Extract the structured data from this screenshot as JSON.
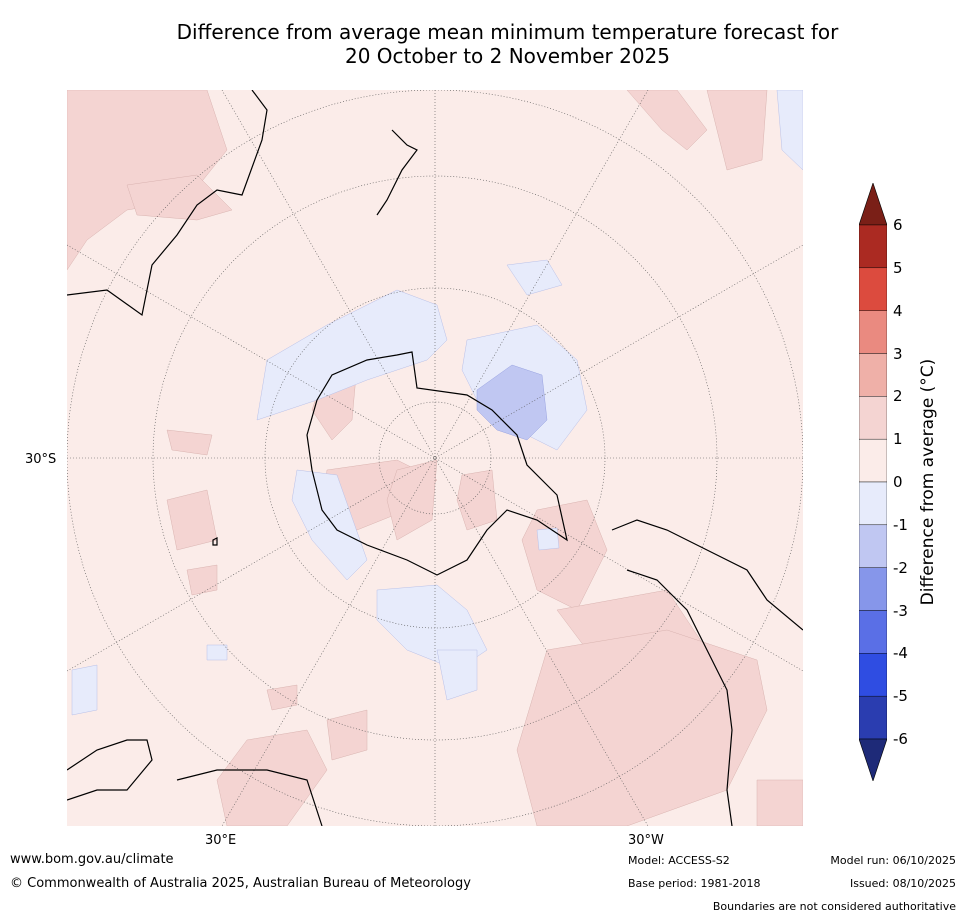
{
  "title_line1": "Difference from average mean minimum temperature forecast for",
  "title_line2": "20 October to 2 November 2025",
  "map": {
    "lat_label": "30°S",
    "lon_label_east": "30°E",
    "lon_label_west": "30°W",
    "colors": {
      "anomaly_0_1": "#fbece9",
      "anomaly_1_2": "#f4d4d2",
      "anomaly_m1_0": "#e7ebfb",
      "anomaly_m2_m1": "#c0c7f2",
      "coast": "#000000",
      "grid": "#555555"
    }
  },
  "colorbar": {
    "label": "Difference from average (°C)",
    "ticks": [
      "6",
      "5",
      "4",
      "3",
      "2",
      "1",
      "0",
      "-1",
      "-2",
      "-3",
      "-4",
      "-5",
      "-6"
    ],
    "colors": [
      "#7a1f17",
      "#ab2a22",
      "#dc4b3e",
      "#ea8a80",
      "#efb0a8",
      "#f4d4d2",
      "#fbece9",
      "#e7ebfb",
      "#c0c7f2",
      "#8696ea",
      "#5a6fe6",
      "#2f4de2",
      "#2a3db0",
      "#1e2a78"
    ]
  },
  "footer": {
    "website": "www.bom.gov.au/climate",
    "copyright": "© Commonwealth of Australia 2025, Australian Bureau of Meteorology",
    "model": "Model: ACCESS-S2",
    "base_period": "Base period: 1981-2018",
    "model_run": "Model run: 06/10/2025",
    "issued": "Issued: 08/10/2025",
    "boundaries": "Boundaries are not considered authoritative"
  }
}
